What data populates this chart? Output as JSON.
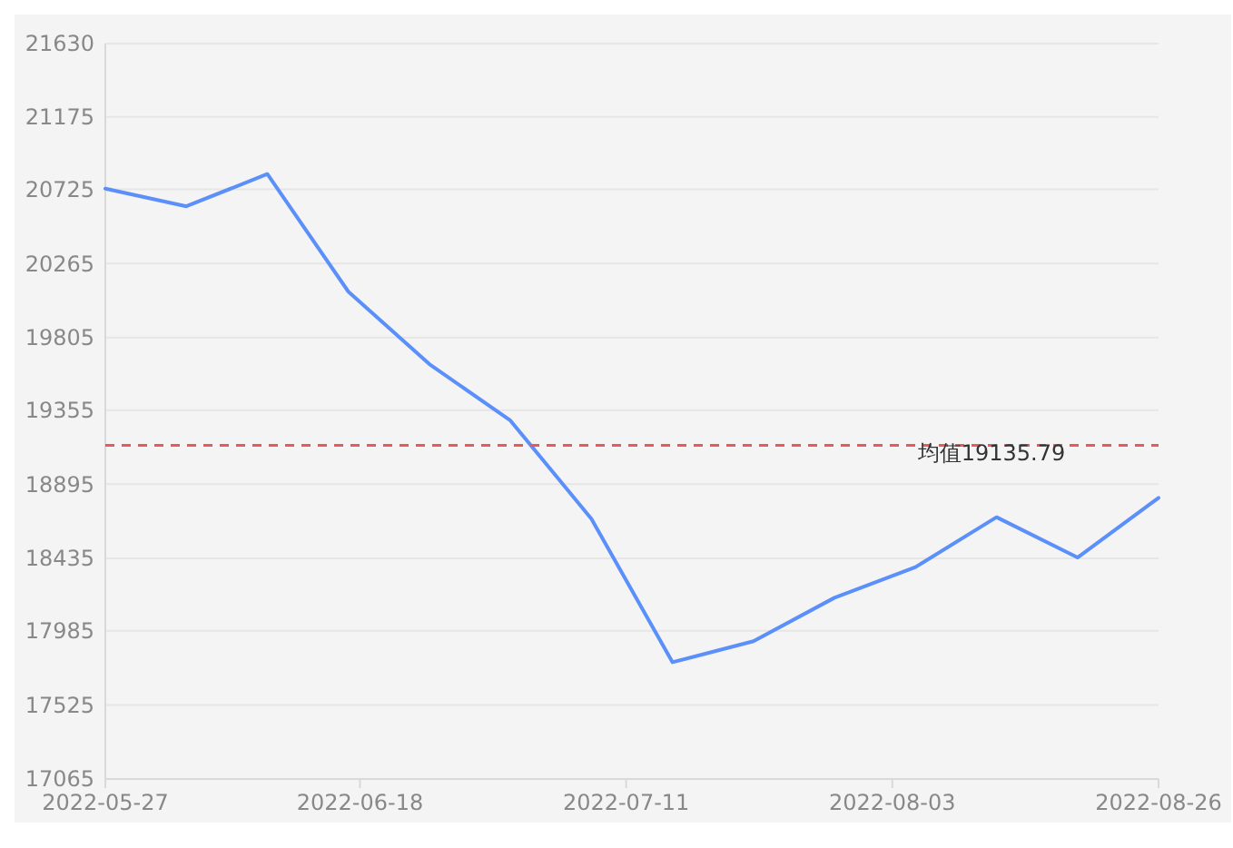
{
  "chart_data": {
    "type": "line",
    "x": [
      "2022-05-27",
      "2022-06-03",
      "2022-06-10",
      "2022-06-17",
      "2022-06-24",
      "2022-07-01",
      "2022-07-08",
      "2022-07-15",
      "2022-07-22",
      "2022-07-29",
      "2022-08-05",
      "2022-08-12",
      "2022-08-19",
      "2022-08-26"
    ],
    "series": [
      {
        "color": "#5b8ff9",
        "values": [
          20730,
          20620,
          20820,
          20090,
          19640,
          19290,
          18680,
          17790,
          17920,
          18190,
          18380,
          18690,
          18440,
          18810
        ]
      }
    ],
    "xlim": [
      "2022-05-27",
      "2022-08-26"
    ],
    "xticks": [
      "2022-05-27",
      "2022-06-18",
      "2022-07-11",
      "2022-08-03",
      "2022-08-26"
    ],
    "ylim": [
      17065,
      21630
    ],
    "yticks": [
      17065,
      17525,
      17985,
      18435,
      18895,
      19355,
      19805,
      20265,
      20725,
      21175,
      21630
    ],
    "grid": "y",
    "marker": "none",
    "line_style": "solid",
    "ref_lines": [
      {
        "axis": "y",
        "value": 19135.79,
        "label": "均值19135.79",
        "color": "#e8595b",
        "line_style": "dashed"
      }
    ]
  }
}
